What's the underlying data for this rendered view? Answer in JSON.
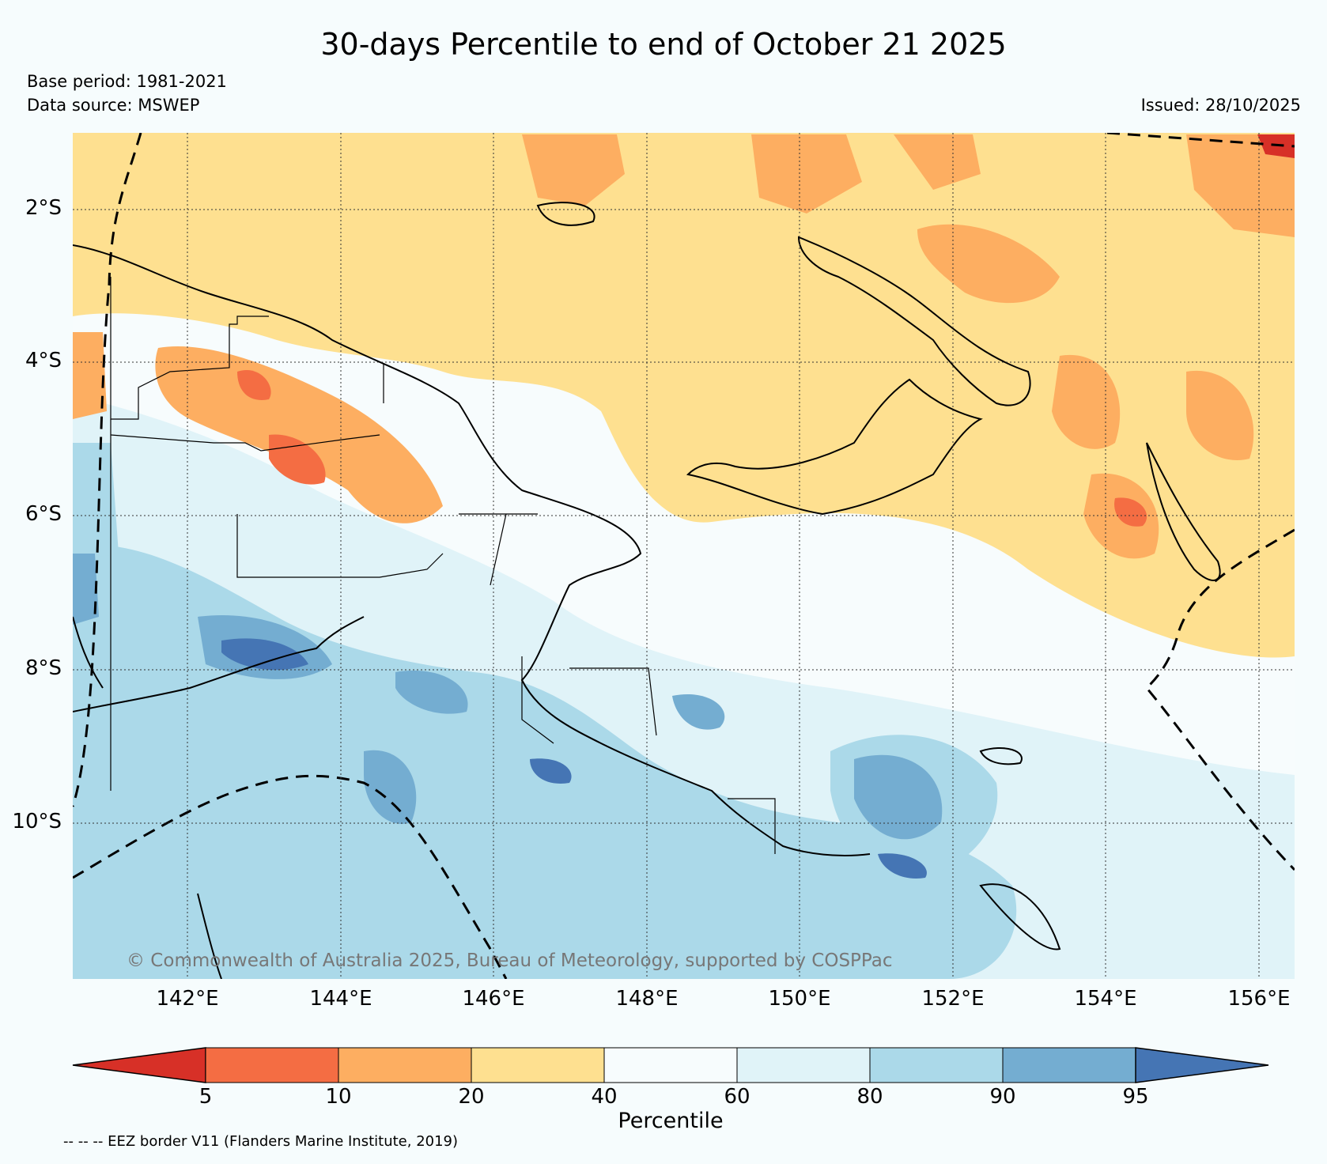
{
  "title": "30-days Percentile to end of October 21 2025",
  "base_period": "Base period: 1981-2021",
  "data_source": "Data source: MSWEP",
  "issued": "Issued: 28/10/2025",
  "copyright": "© Commonwealth of Australia 2025, Bureau of Meteorology, supported by COSPPac",
  "lat_labels": [
    "2°S",
    "4°S",
    "6°S",
    "8°S",
    "10°S"
  ],
  "lon_labels": [
    "142°E",
    "144°E",
    "146°E",
    "148°E",
    "150°E",
    "152°E",
    "154°E",
    "156°E"
  ],
  "colorbar": {
    "label": "Percentile",
    "ticks": [
      "5",
      "10",
      "20",
      "40",
      "60",
      "80",
      "90",
      "95"
    ],
    "colors": [
      "#d73027",
      "#f46d43",
      "#fdae61",
      "#fee090",
      "#f7fcfd",
      "#e0f3f8",
      "#abd9e9",
      "#74add1",
      "#4575b4"
    ]
  },
  "legend_note": "-- -- -- EEZ border V11 (Flanders Marine Institute, 2019)"
}
